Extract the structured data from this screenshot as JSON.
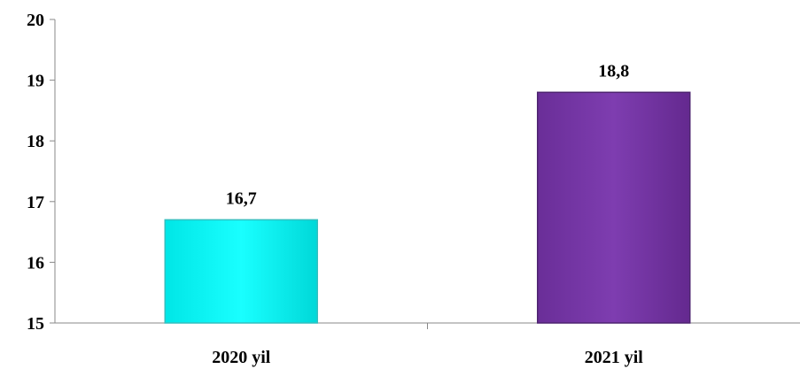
{
  "chart_data": {
    "type": "bar",
    "title": "",
    "xlabel": "",
    "ylabel": "",
    "categories": [
      "2020 yil",
      "2021 yil"
    ],
    "values": [
      16.7,
      18.8
    ],
    "value_labels": [
      "16,7",
      "18,8"
    ],
    "ylim": [
      15,
      20
    ],
    "yticks": [
      15,
      16,
      17,
      18,
      19,
      20
    ],
    "ytick_labels": [
      "15",
      "16",
      "17",
      "18",
      "19",
      "20"
    ],
    "grid": false,
    "legend": "none",
    "bar_colors": [
      "#00F0F0",
      "#7A3AAA"
    ],
    "bar_edge_colors": [
      "#33BFBF",
      "#4E2470"
    ]
  }
}
